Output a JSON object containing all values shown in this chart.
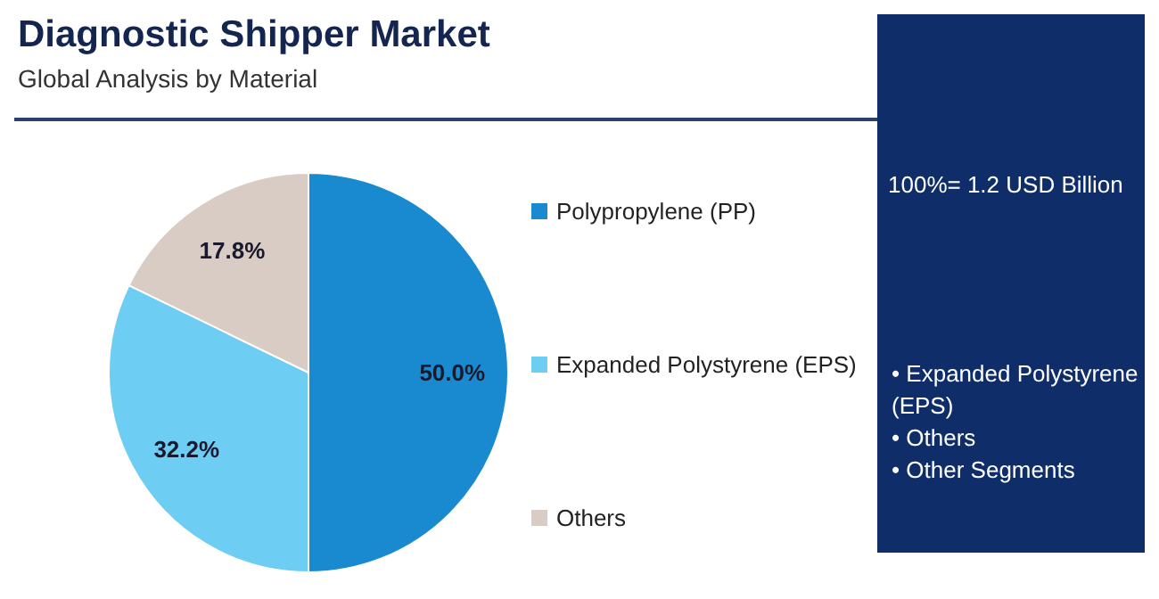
{
  "chart_data": {
    "type": "pie",
    "title": "Diagnostic Shipper Market",
    "subtitle": "Global Analysis by Material",
    "categories": [
      "Polypropylene (PP)",
      "Expanded Polystyrene (EPS)",
      "Others"
    ],
    "values": [
      50.0,
      32.2,
      17.8
    ],
    "colors": [
      "#1a8ad0",
      "#6ecdf2",
      "#d9ccc5"
    ],
    "value_labels": [
      "50.0%",
      "32.2%",
      "17.8%"
    ],
    "legend": "right",
    "annotations": [
      "100%= 1.2 USD Billion",
      "• Expanded Polystyrene (EPS)",
      "• Others",
      "• Other Segments"
    ]
  }
}
